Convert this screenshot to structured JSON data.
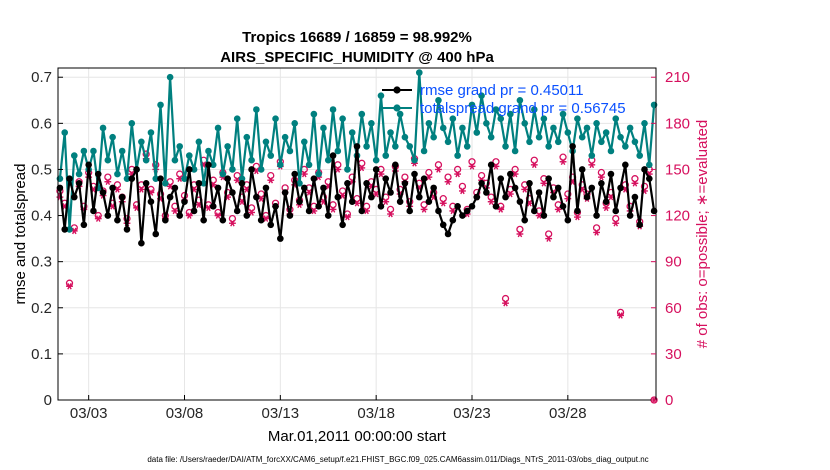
{
  "chart_data": {
    "type": "line",
    "title_line1": "Tropics 16689 / 16859 = 98.992%",
    "title_line2": "AIRS_SPECIFIC_HUMIDITY @ 400 hPa",
    "xlabel": "Mar.01,2011 00:00:00 start",
    "ylabel_left": "rmse and totalspread",
    "ylabel_right": "# of obs: o=possible; ∗=evaluated",
    "footnote": "data file: /Users/raeder/DAI/ATM_forcXX/CAM6_setup/f.e21.FHIST_BGC.f09_025.CAM6assim.011/Diags_NTrS_2011-03/obs_diag_output.nc",
    "xlim": [
      1.4,
      32.6
    ],
    "ylim_left": [
      0,
      0.72
    ],
    "ylim_right": [
      0,
      216
    ],
    "x_ticks": [
      3,
      8,
      13,
      18,
      23,
      28
    ],
    "x_tick_labels": [
      "03/03",
      "03/08",
      "03/13",
      "03/18",
      "03/23",
      "03/28"
    ],
    "y_left_ticks": [
      0,
      0.1,
      0.2,
      0.3,
      0.4,
      0.5,
      0.6,
      0.7
    ],
    "y_left_tick_labels": [
      "0",
      "0.1",
      "0.2",
      "0.3",
      "0.4",
      "0.5",
      "0.6",
      "0.7"
    ],
    "y_right_ticks": [
      0,
      30,
      60,
      90,
      120,
      150,
      180,
      210
    ],
    "y_right_tick_labels": [
      "0",
      "30",
      "60",
      "90",
      "120",
      "150",
      "180",
      "210"
    ],
    "legend": [
      {
        "label": "rmse grand pr = 0.45011",
        "color": "#000000"
      },
      {
        "label": "totalspread grand pr = 0.56745",
        "color": "#00807f"
      }
    ],
    "colors": {
      "rmse": "#000000",
      "spread": "#00807f",
      "obs": "#d6105e",
      "legend_text": "#0a50ff"
    },
    "series": [
      {
        "name": "rmse",
        "axis": "left",
        "values": [
          0.46,
          0.37,
          0.48,
          0.44,
          0.47,
          0.38,
          0.51,
          0.41,
          0.49,
          0.45,
          0.4,
          0.46,
          0.39,
          0.44,
          0.37,
          0.48,
          0.5,
          0.34,
          0.47,
          0.43,
          0.36,
          0.48,
          0.39,
          0.44,
          0.46,
          0.4,
          0.43,
          0.5,
          0.41,
          0.47,
          0.39,
          0.51,
          0.42,
          0.46,
          0.39,
          0.48,
          0.45,
          0.41,
          0.47,
          0.4,
          0.5,
          0.44,
          0.39,
          0.46,
          0.38,
          0.42,
          0.35,
          0.45,
          0.4,
          0.49,
          0.43,
          0.46,
          0.41,
          0.48,
          0.42,
          0.46,
          0.4,
          0.53,
          0.44,
          0.38,
          0.47,
          0.43,
          0.55,
          0.41,
          0.47,
          0.44,
          0.5,
          0.42,
          0.48,
          0.45,
          0.51,
          0.43,
          0.47,
          0.41,
          0.49,
          0.44,
          0.48,
          0.43,
          0.46,
          0.41,
          0.38,
          0.36,
          0.39,
          0.42,
          0.4,
          0.41,
          0.42,
          0.44,
          0.47,
          0.45,
          0.51,
          0.42,
          0.48,
          0.44,
          0.49,
          0.46,
          0.43,
          0.39,
          0.47,
          0.41,
          0.45,
          0.4,
          0.48,
          0.44,
          0.46,
          0.42,
          0.39,
          0.55,
          0.41,
          0.5,
          0.44,
          0.46,
          0.4,
          0.47,
          0.43,
          0.49,
          0.41,
          0.46,
          0.51,
          0.4,
          0.44,
          0.38,
          0.5,
          0.48,
          0.41
        ]
      },
      {
        "name": "totalspread",
        "axis": "left",
        "values": [
          0.48,
          0.58,
          0.37,
          0.53,
          0.49,
          0.54,
          0.5,
          0.54,
          0.46,
          0.59,
          0.52,
          0.57,
          0.49,
          0.54,
          0.48,
          0.6,
          0.5,
          0.56,
          0.52,
          0.58,
          0.48,
          0.64,
          0.47,
          0.7,
          0.52,
          0.55,
          0.48,
          0.53,
          0.5,
          0.56,
          0.47,
          0.54,
          0.51,
          0.59,
          0.49,
          0.55,
          0.5,
          0.61,
          0.48,
          0.57,
          0.52,
          0.63,
          0.5,
          0.56,
          0.53,
          0.61,
          0.51,
          0.57,
          0.54,
          0.6,
          0.47,
          0.56,
          0.51,
          0.62,
          0.49,
          0.59,
          0.52,
          0.63,
          0.54,
          0.61,
          0.5,
          0.58,
          0.53,
          0.62,
          0.55,
          0.6,
          0.52,
          0.66,
          0.53,
          0.58,
          0.55,
          0.62,
          0.57,
          0.55,
          0.52,
          0.71,
          0.54,
          0.6,
          0.57,
          0.65,
          0.59,
          0.56,
          0.61,
          0.53,
          0.59,
          0.55,
          0.64,
          0.58,
          0.66,
          0.6,
          0.57,
          0.63,
          0.61,
          0.55,
          0.62,
          0.54,
          0.65,
          0.6,
          0.56,
          0.63,
          0.57,
          0.61,
          0.55,
          0.59,
          0.56,
          0.62,
          0.58,
          0.54,
          0.61,
          0.57,
          0.59,
          0.53,
          0.6,
          0.56,
          0.58,
          0.54,
          0.61,
          0.57,
          0.55,
          0.59,
          0.56,
          0.53,
          0.6,
          0.51,
          0.64
        ]
      },
      {
        "name": "obs_possible",
        "axis": "right",
        "marker": "circle",
        "values": [
          136,
          128,
          76,
          112,
          142,
          126,
          148,
          139,
          120,
          136,
          145,
          128,
          140,
          132,
          118,
          150,
          127,
          140,
          160,
          137,
          153,
          134,
          120,
          142,
          126,
          147,
          133,
          122,
          140,
          130,
          156,
          127,
          143,
          122,
          148,
          135,
          118,
          146,
          132,
          140,
          125,
          152,
          134,
          120,
          146,
          128,
          155,
          138,
          124,
          143,
          130,
          150,
          138,
          126,
          148,
          132,
          142,
          127,
          153,
          136,
          121,
          145,
          131,
          154,
          126,
          142,
          137,
          150,
          132,
          124,
          152,
          137,
          145,
          129,
          157,
          141,
          127,
          148,
          135,
          153,
          131,
          145,
          126,
          150,
          139,
          124,
          155,
          135,
          146,
          141,
          132,
          155,
          126,
          66,
          137,
          150,
          111,
          140,
          131,
          156,
          123,
          144,
          108,
          138,
          127,
          158,
          134,
          145,
          122,
          140,
          134,
          156,
          112,
          148,
          128,
          135,
          118,
          57,
          140,
          126,
          144,
          116,
          139,
          150,
          0
        ]
      },
      {
        "name": "obs_evaluated",
        "axis": "right",
        "marker": "star",
        "values": [
          132,
          126,
          74,
          110,
          139,
          124,
          145,
          137,
          118,
          133,
          142,
          126,
          137,
          129,
          115,
          147,
          125,
          137,
          157,
          135,
          150,
          131,
          118,
          139,
          123,
          144,
          130,
          120,
          137,
          127,
          153,
          125,
          140,
          120,
          145,
          132,
          115,
          143,
          129,
          137,
          122,
          149,
          131,
          118,
          143,
          126,
          152,
          135,
          121,
          140,
          127,
          147,
          135,
          123,
          145,
          129,
          139,
          124,
          150,
          133,
          119,
          142,
          128,
          151,
          123,
          139,
          134,
          147,
          129,
          121,
          149,
          134,
          142,
          126,
          154,
          138,
          124,
          145,
          132,
          150,
          128,
          142,
          123,
          147,
          136,
          121,
          152,
          132,
          143,
          138,
          129,
          152,
          124,
          63,
          134,
          147,
          108,
          137,
          128,
          153,
          120,
          141,
          105,
          135,
          124,
          155,
          131,
          142,
          119,
          137,
          131,
          153,
          109,
          145,
          125,
          132,
          115,
          55,
          137,
          123,
          141,
          113,
          136,
          147,
          0
        ]
      }
    ]
  }
}
